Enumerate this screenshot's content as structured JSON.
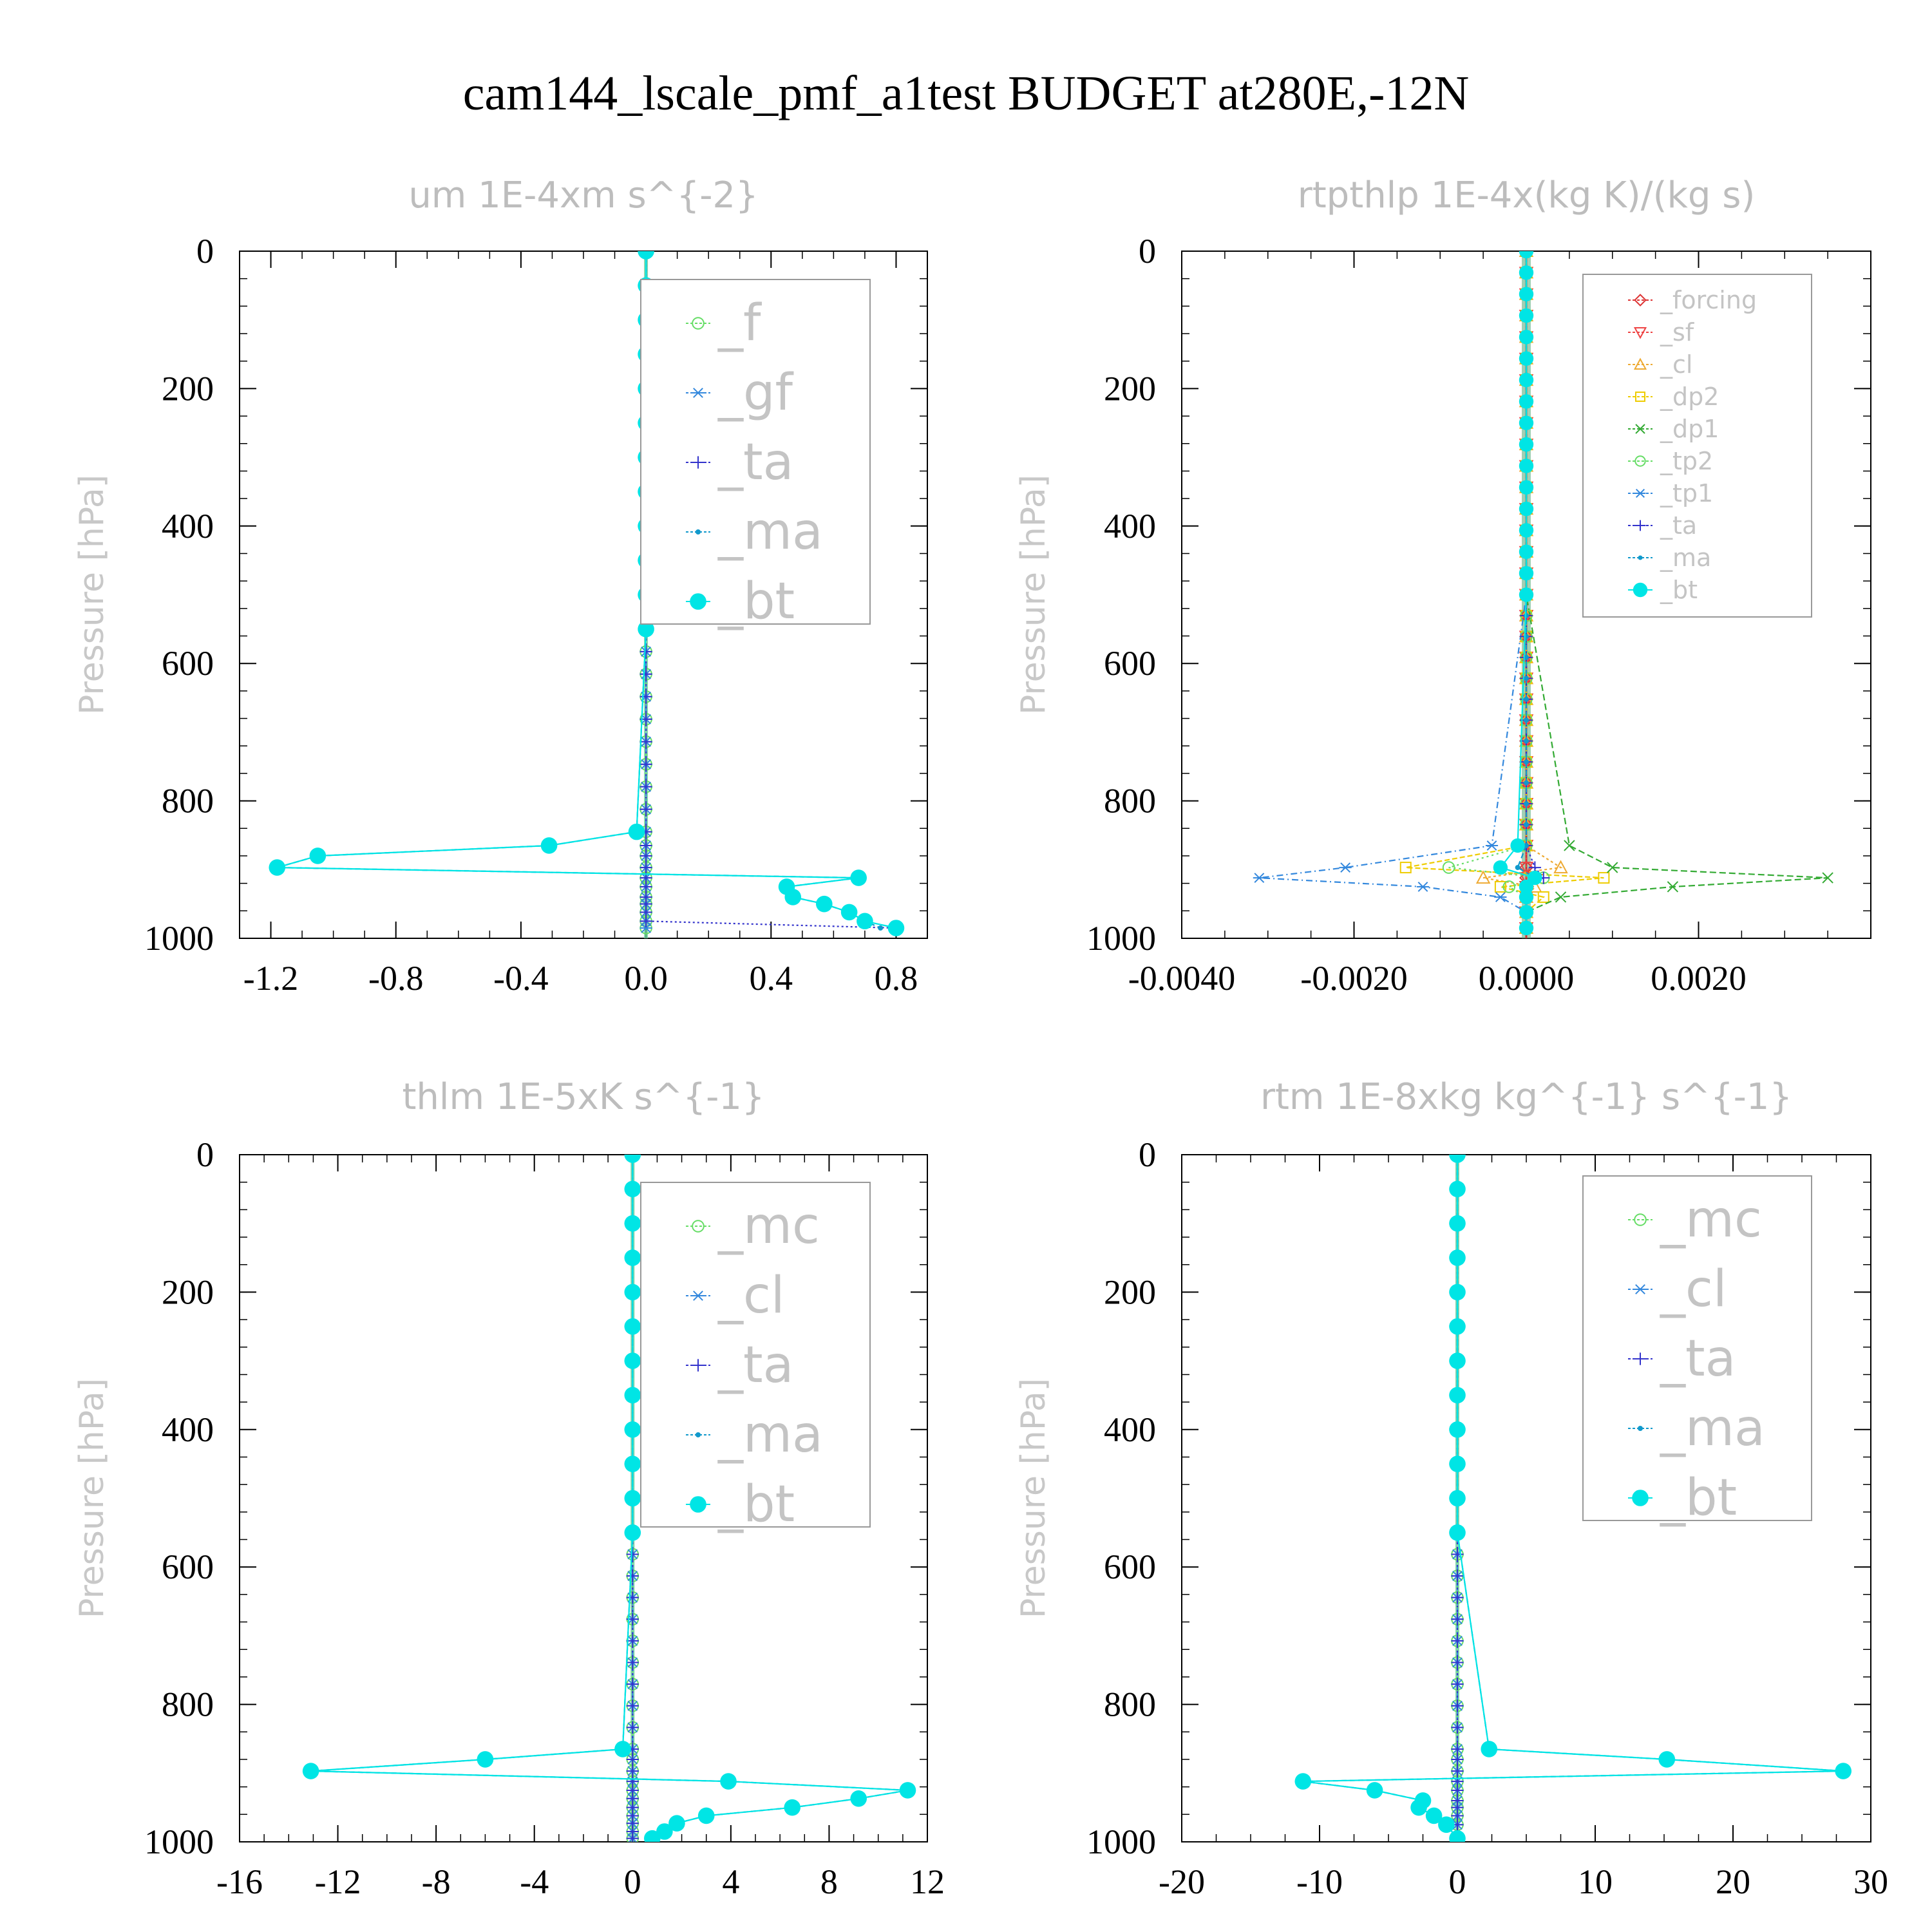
{
  "page": {
    "title": "cam144_lscale_pmf_a1test  BUDGET at280E,-12N"
  },
  "chart_data": [
    {
      "type": "line",
      "title": "um  1E-4xm s^{-2}",
      "xlabel": "",
      "ylabel": "Pressure [hPa]",
      "xlim": [
        -1.3,
        0.9
      ],
      "ylim": [
        1000,
        0
      ],
      "y_inverted": true,
      "xticks": [
        -1.2,
        -0.8,
        -0.4,
        0.0,
        0.4,
        0.8
      ],
      "xtick_labels": [
        "-1.2",
        "-0.8",
        "-0.4",
        "0.0",
        "0.4",
        "0.8"
      ],
      "yticks": [
        0,
        200,
        400,
        600,
        800,
        1000
      ],
      "ytick_labels": [
        "0",
        "200",
        "400",
        "600",
        "800",
        "1000"
      ],
      "legend_position": "top-right",
      "legend_size": "large",
      "series": [
        {
          "name": "_f",
          "color": "#66dd66",
          "marker": "circle-open",
          "dash": "4 6",
          "values": [
            0,
            0,
            0,
            0,
            0,
            0,
            0,
            0,
            0,
            0,
            0,
            0,
            0,
            0,
            0,
            0,
            0,
            0,
            0,
            0,
            0,
            0,
            0
          ]
        },
        {
          "name": "_gf",
          "color": "#3388dd",
          "marker": "star",
          "dash": "10 5 2 5",
          "values": [
            0,
            0,
            0,
            0,
            0,
            0,
            0,
            0,
            0,
            0,
            0,
            0,
            0,
            0,
            0,
            0,
            0,
            0,
            0,
            0,
            0,
            0,
            0
          ]
        },
        {
          "name": "_ta",
          "color": "#3333cc",
          "marker": "plus",
          "dash": "3 4",
          "values": [
            0,
            0,
            0,
            0,
            0,
            0,
            0,
            0,
            0,
            0,
            0,
            0,
            0,
            0,
            0,
            0,
            0,
            0,
            0,
            0,
            0,
            0,
            0.8
          ]
        },
        {
          "name": "_ma",
          "color": "#1199cc",
          "marker": "dot",
          "dash": "8 5",
          "values": [
            0,
            0,
            0,
            0,
            0,
            0,
            0,
            0,
            0,
            0,
            0,
            0,
            -0.03,
            -0.31,
            -1.05,
            -1.18,
            0.68,
            0.45,
            0.47,
            0.57,
            0.65,
            0.7,
            0.75
          ]
        },
        {
          "name": "_bt",
          "color": "#00e5e5",
          "marker": "filled-circle",
          "dash": "",
          "values": [
            0,
            0,
            0,
            0,
            0,
            0,
            0,
            0,
            0,
            0,
            0,
            0,
            -0.03,
            -0.31,
            -1.05,
            -1.18,
            0.68,
            0.45,
            0.47,
            0.57,
            0.65,
            0.7,
            0.8
          ]
        }
      ],
      "pressure": [
        0,
        50,
        100,
        150,
        200,
        250,
        300,
        350,
        400,
        450,
        500,
        550,
        845,
        865,
        880,
        897,
        912,
        925,
        940,
        950,
        962,
        975,
        985
      ]
    },
    {
      "type": "line",
      "title": "rtpthlp  1E-4x(kg K)/(kg s)",
      "xlabel": "",
      "ylabel": "Pressure [hPa]",
      "xlim": [
        -0.004,
        0.004
      ],
      "ylim": [
        1000,
        0
      ],
      "y_inverted": true,
      "xticks": [
        -0.004,
        -0.002,
        0.0,
        0.002
      ],
      "xtick_labels": [
        "-0.0040",
        "-0.0020",
        "0.0000",
        "0.0020"
      ],
      "yticks": [
        0,
        200,
        400,
        600,
        800,
        1000
      ],
      "ytick_labels": [
        "0",
        "200",
        "400",
        "600",
        "800",
        "1000"
      ],
      "legend_position": "top-right",
      "legend_size": "small",
      "series": [
        {
          "name": "_forcing",
          "color": "#dd3333",
          "marker": "diamond-open",
          "dash": "6 4",
          "values": [
            0,
            0,
            0,
            0,
            0,
            0,
            0,
            0,
            0
          ]
        },
        {
          "name": "_sf",
          "color": "#ee4444",
          "marker": "triangle-down-open",
          "dash": "2 4",
          "values": [
            0,
            0,
            0,
            0,
            0,
            0,
            0,
            0,
            0
          ]
        },
        {
          "name": "_cl",
          "color": "#eeaa33",
          "marker": "triangle-open",
          "dash": "4 4",
          "values": [
            0,
            0,
            0,
            0.0004,
            -0.0005,
            0.0001,
            0,
            0,
            0
          ]
        },
        {
          "name": "_dp2",
          "color": "#eecc00",
          "marker": "box-open",
          "dash": "8 4",
          "values": [
            0,
            0,
            0,
            -0.0014,
            0.0009,
            -0.0003,
            0.0002,
            0,
            0
          ]
        },
        {
          "name": "_dp1",
          "color": "#33aa33",
          "marker": "cross",
          "dash": "10 5",
          "values": [
            0,
            0,
            0.0005,
            0.001,
            0.0035,
            0.0017,
            0.0004,
            0,
            0
          ]
        },
        {
          "name": "_tp2",
          "color": "#66dd66",
          "marker": "circle-open",
          "dash": "3 5",
          "values": [
            0,
            0,
            0,
            -0.0009,
            0.0002,
            -0.0002,
            0,
            0,
            0
          ]
        },
        {
          "name": "_tp1",
          "color": "#3388dd",
          "marker": "star",
          "dash": "10 5 2 5",
          "values": [
            0,
            0,
            -0.0004,
            -0.0021,
            -0.0031,
            -0.0012,
            -0.0003,
            0,
            0
          ]
        },
        {
          "name": "_ta",
          "color": "#3333cc",
          "marker": "plus",
          "dash": "3 4",
          "values": [
            0,
            0,
            0,
            0.0001,
            0.0002,
            0,
            0,
            0,
            0
          ]
        },
        {
          "name": "_ma",
          "color": "#1199cc",
          "marker": "dot",
          "dash": "8 5",
          "values": [
            0,
            0,
            0,
            -0.0001,
            0.0001,
            0,
            0,
            0,
            0
          ]
        },
        {
          "name": "_bt",
          "color": "#00e5e5",
          "marker": "filled-circle",
          "dash": "",
          "values": [
            0,
            0,
            -0.0001,
            -0.0003,
            0.0001,
            0,
            0,
            0,
            0
          ]
        }
      ],
      "pressure": [
        0,
        500,
        865,
        897,
        912,
        925,
        940,
        962,
        985
      ]
    },
    {
      "type": "line",
      "title": "thlm  1E-5xK s^{-1}",
      "xlabel": "",
      "ylabel": "Pressure [hPa]",
      "xlim": [
        -16,
        12
      ],
      "ylim": [
        1000,
        0
      ],
      "y_inverted": true,
      "xticks": [
        -16,
        -12,
        -8,
        -4,
        0,
        4,
        8,
        12
      ],
      "xtick_labels": [
        "-16",
        "-12",
        "-8",
        "-4",
        "0",
        "4",
        "8",
        "12"
      ],
      "yticks": [
        0,
        200,
        400,
        600,
        800,
        1000
      ],
      "ytick_labels": [
        "0",
        "200",
        "400",
        "600",
        "800",
        "1000"
      ],
      "legend_position": "top-right",
      "legend_size": "large",
      "series": [
        {
          "name": "_mc",
          "color": "#66dd66",
          "marker": "circle-open",
          "dash": "4 6",
          "values": [
            0,
            0,
            0,
            0,
            0,
            0,
            0,
            0,
            0,
            0,
            0,
            0,
            0,
            0,
            0,
            0,
            0,
            0,
            0,
            0,
            0,
            0,
            0
          ]
        },
        {
          "name": "_cl",
          "color": "#3388dd",
          "marker": "star",
          "dash": "10 5 2 5",
          "values": [
            0,
            0,
            0,
            0,
            0,
            0,
            0,
            0,
            0,
            0,
            0,
            0,
            0,
            0,
            0,
            0,
            0,
            0,
            0,
            0,
            0,
            0,
            0
          ]
        },
        {
          "name": "_ta",
          "color": "#3333cc",
          "marker": "plus",
          "dash": "3 4",
          "values": [
            0,
            0,
            0,
            0,
            0,
            0,
            0,
            0,
            0,
            0,
            0,
            0,
            0,
            0,
            0,
            0,
            0,
            0,
            0,
            0,
            0,
            0,
            0
          ]
        },
        {
          "name": "_ma",
          "color": "#1199cc",
          "marker": "dot",
          "dash": "8 5",
          "values": [
            0,
            0,
            0,
            0,
            0,
            0,
            0,
            0,
            0,
            0,
            0,
            0,
            -0.4,
            -6.0,
            -13.1,
            3.9,
            11.2,
            9.2,
            6.5,
            3.0,
            1.8,
            1.3,
            0.8
          ]
        },
        {
          "name": "_bt",
          "color": "#00e5e5",
          "marker": "filled-circle",
          "dash": "",
          "values": [
            0,
            0,
            0,
            0,
            0,
            0,
            0,
            0,
            0,
            0,
            0,
            0,
            -0.4,
            -6.0,
            -13.1,
            3.9,
            11.2,
            9.2,
            6.5,
            3.0,
            1.8,
            1.3,
            0.8
          ]
        }
      ],
      "pressure": [
        0,
        50,
        100,
        150,
        200,
        250,
        300,
        350,
        400,
        450,
        500,
        550,
        865,
        880,
        897,
        912,
        925,
        937,
        950,
        962,
        973,
        985,
        995
      ]
    },
    {
      "type": "line",
      "title": "rtm  1E-8xkg kg^{-1} s^{-1}",
      "xlabel": "",
      "ylabel": "Pressure [hPa]",
      "xlim": [
        -20,
        30
      ],
      "ylim": [
        1000,
        0
      ],
      "y_inverted": true,
      "xticks": [
        -20,
        -10,
        0,
        10,
        20,
        30
      ],
      "xtick_labels": [
        "-20",
        "-10",
        "0",
        "10",
        "20",
        "30"
      ],
      "yticks": [
        0,
        200,
        400,
        600,
        800,
        1000
      ],
      "ytick_labels": [
        "0",
        "200",
        "400",
        "600",
        "800",
        "1000"
      ],
      "legend_position": "top-right",
      "legend_size": "large",
      "series": [
        {
          "name": "_mc",
          "color": "#66dd66",
          "marker": "circle-open",
          "dash": "4 6",
          "values": [
            0,
            0,
            0,
            0,
            0,
            0,
            0,
            0,
            0,
            0,
            0,
            0,
            0,
            0,
            0,
            0,
            0,
            0,
            0,
            0,
            0,
            0
          ]
        },
        {
          "name": "_cl",
          "color": "#3388dd",
          "marker": "star",
          "dash": "10 5 2 5",
          "values": [
            0,
            0,
            0,
            0,
            0,
            0,
            0,
            0,
            0,
            0,
            0,
            0,
            0,
            0,
            0,
            0,
            0,
            0,
            0,
            0,
            0,
            0
          ]
        },
        {
          "name": "_ta",
          "color": "#3333cc",
          "marker": "plus",
          "dash": "3 4",
          "values": [
            0,
            0,
            0,
            0,
            0,
            0,
            0,
            0,
            0,
            0,
            0,
            0,
            0,
            0,
            0,
            0,
            0,
            0,
            0,
            0,
            0,
            0
          ]
        },
        {
          "name": "_ma",
          "color": "#1199cc",
          "marker": "dot",
          "dash": "8 5",
          "values": [
            0,
            0,
            0,
            0,
            0,
            0,
            0,
            0,
            0,
            0,
            0,
            0,
            2.3,
            15.2,
            28.0,
            -11.2,
            -6.0,
            -2.5,
            -2.8,
            -1.7,
            -0.8,
            0
          ]
        },
        {
          "name": "_bt",
          "color": "#00e5e5",
          "marker": "filled-circle",
          "dash": "",
          "values": [
            0,
            0,
            0,
            0,
            0,
            0,
            0,
            0,
            0,
            0,
            0,
            0,
            2.3,
            15.2,
            28.0,
            -11.2,
            -6.0,
            -2.5,
            -2.8,
            -1.7,
            -0.8,
            0
          ]
        }
      ],
      "pressure": [
        0,
        50,
        100,
        150,
        200,
        250,
        300,
        350,
        400,
        450,
        500,
        550,
        865,
        880,
        897,
        912,
        925,
        940,
        950,
        962,
        975,
        995
      ]
    }
  ]
}
